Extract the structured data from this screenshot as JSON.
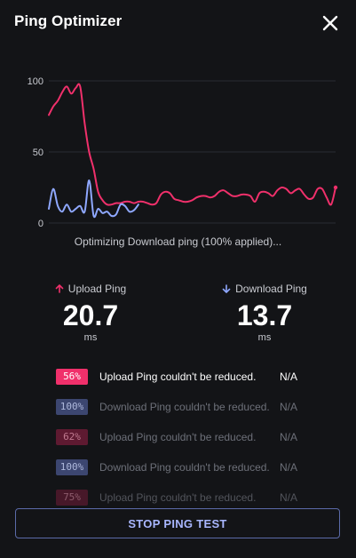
{
  "header": {
    "title": "Ping Optimizer",
    "close_icon": "close-icon"
  },
  "chart_data": {
    "type": "line",
    "y_ticks": [
      "100",
      "50",
      "0"
    ],
    "ylim": [
      0,
      100
    ],
    "grid": true,
    "series": [
      {
        "color": "#f0306b",
        "x": [
          0,
          1,
          2,
          3,
          4,
          5,
          6,
          7,
          8,
          9,
          10,
          11,
          12,
          13,
          14,
          15,
          16,
          17,
          18,
          19,
          20,
          21,
          22,
          23,
          24,
          25,
          26,
          27,
          28,
          29,
          30,
          31,
          32,
          33,
          34,
          35,
          36,
          37,
          38,
          39,
          40,
          41,
          42,
          43,
          44,
          45,
          46,
          47,
          48,
          49,
          50,
          51,
          52,
          53,
          54,
          55,
          56,
          57,
          58,
          59,
          60,
          61,
          62,
          63,
          64
        ],
        "y": [
          76,
          82,
          86,
          92,
          96,
          91,
          95,
          96,
          70,
          50,
          38,
          22,
          16,
          13,
          13,
          14,
          14,
          15,
          15,
          14,
          15,
          15,
          14,
          13,
          14,
          20,
          22,
          21,
          17,
          16,
          15,
          15,
          16,
          18,
          19,
          19,
          18,
          19,
          22,
          23,
          21,
          19,
          19,
          20,
          20,
          19,
          15,
          21,
          22,
          21,
          19,
          23,
          25,
          24,
          21,
          23,
          24,
          20,
          17,
          18,
          24,
          24,
          18,
          13,
          25
        ],
        "endpoint_color": "#f0306b"
      },
      {
        "color": "#8fa8ff",
        "x": [
          0,
          1,
          2,
          3,
          4,
          5,
          6,
          7,
          8,
          9,
          10,
          11,
          12,
          13,
          14,
          15,
          16,
          17,
          18,
          19,
          20
        ],
        "y": [
          10,
          24,
          12,
          8,
          13,
          8,
          10,
          12,
          8,
          30,
          5,
          10,
          7,
          8,
          5,
          6,
          13,
          12,
          8,
          9,
          13
        ]
      }
    ]
  },
  "status": {
    "text": "Optimizing Download ping (100% applied)..."
  },
  "metrics": {
    "upload": {
      "label": "Upload Ping",
      "value": "20.7",
      "unit": "ms",
      "icon": "arrow-up-icon",
      "color": "#f0306b"
    },
    "download": {
      "label": "Download Ping",
      "value": "13.7",
      "unit": "ms",
      "icon": "arrow-down-icon",
      "color": "#8fa8ff"
    }
  },
  "log": [
    {
      "badge": "56%",
      "text": "Upload Ping couldn't be reduced.",
      "result": "N/A",
      "kind": "upload",
      "active": true
    },
    {
      "badge": "100%",
      "text": "Download Ping couldn't be reduced.",
      "result": "N/A",
      "kind": "download",
      "active": false
    },
    {
      "badge": "62%",
      "text": "Upload Ping couldn't be reduced.",
      "result": "N/A",
      "kind": "upload",
      "active": false
    },
    {
      "badge": "100%",
      "text": "Download Ping couldn't be reduced.",
      "result": "N/A",
      "kind": "download",
      "active": false
    },
    {
      "badge": "75%",
      "text": "Upload Ping couldn't be reduced.",
      "result": "N/A",
      "kind": "upload",
      "active": false
    }
  ],
  "actions": {
    "stop_label": "STOP PING TEST"
  },
  "colors": {
    "background": "#131417",
    "upload": "#f0306b",
    "download": "#8fa8ff",
    "button_border": "#5b6aa8",
    "button_text": "#a9b7ff"
  }
}
